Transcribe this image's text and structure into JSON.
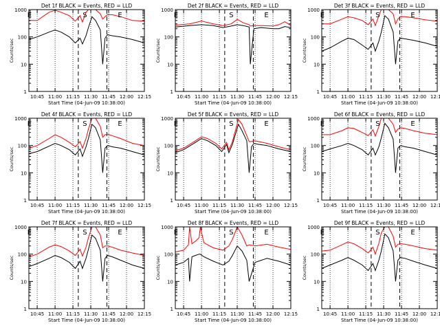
{
  "figure": {
    "xlabel": "Start Time (04-Jun-09 10:38:00)",
    "ylabel": "Counts/sec",
    "ytick_labels": [
      "1",
      "10",
      "100",
      "1000"
    ],
    "xtick_labels": [
      "10:45",
      "11:00",
      "11:15",
      "11:30",
      "11:45",
      "12:00",
      "12:15"
    ],
    "marker_labels": [
      "E",
      "S",
      "E"
    ],
    "colors": {
      "events": "#000000",
      "lld": "#ff0000",
      "frame": "#000000"
    }
  },
  "chart_data": [
    {
      "type": "line",
      "title": "Det 1f BLACK = Events, RED = LLD",
      "xlabel": "Start Time (04-Jun-09 10:38:00)",
      "ylabel": "Counts/sec",
      "xlim": [
        "10:38",
        "12:15"
      ],
      "ylim": [
        1,
        1000
      ],
      "yscale": "log",
      "x": [
        "10:38",
        "10:45",
        "10:55",
        "11:00",
        "11:05",
        "11:12",
        "11:17",
        "11:21",
        "11:23",
        "11:26",
        "11:28",
        "11:31",
        "11:34",
        "11:38",
        "11:40",
        "11:42",
        "11:44",
        "11:48",
        "11:55",
        "12:05",
        "12:15"
      ],
      "series": [
        {
          "name": "Events",
          "values": [
            80,
            100,
            150,
            180,
            150,
            100,
            60,
            90,
            55,
            110,
            220,
            550,
            400,
            180,
            10,
            90,
            120,
            110,
            100,
            80,
            60
          ]
        },
        {
          "name": "LLD",
          "values": [
            400,
            400,
            800,
            950,
            800,
            600,
            380,
            600,
            350,
            800,
            1000,
            1000,
            1000,
            700,
            450,
            550,
            650,
            650,
            550,
            400,
            380
          ]
        }
      ]
    },
    {
      "type": "line",
      "title": "Det 2f BLACK = Events, RED = LLD",
      "xlabel": "Start Time (04-Jun-09 10:38:00)",
      "ylabel": "Counts/sec",
      "xlim": [
        "10:38",
        "12:15"
      ],
      "ylim": [
        1,
        1000
      ],
      "yscale": "log",
      "x": [
        "10:38",
        "10:50",
        "11:00",
        "11:10",
        "11:18",
        "11:25",
        "11:30",
        "11:35",
        "11:40",
        "11:41",
        "11:44",
        "11:50",
        "12:00",
        "12:05",
        "12:10",
        "12:15"
      ],
      "series": [
        {
          "name": "Events",
          "values": [
            230,
            260,
            280,
            260,
            220,
            250,
            280,
            260,
            230,
            10,
            200,
            220,
            200,
            200,
            240,
            220
          ]
        },
        {
          "name": "LLD",
          "values": [
            270,
            300,
            380,
            300,
            260,
            300,
            440,
            330,
            280,
            250,
            260,
            260,
            250,
            280,
            360,
            260
          ]
        }
      ]
    },
    {
      "type": "line",
      "title": "Det 3f BLACK = Events, RED = LLD",
      "xlabel": "Start Time (04-Jun-09 10:38:00)",
      "ylabel": "Counts/sec",
      "xlim": [
        "10:38",
        "12:15"
      ],
      "ylim": [
        1,
        1000
      ],
      "yscale": "log",
      "x": [
        "10:38",
        "10:45",
        "10:55",
        "11:00",
        "11:05",
        "11:12",
        "11:17",
        "11:21",
        "11:23",
        "11:26",
        "11:28",
        "11:31",
        "11:34",
        "11:38",
        "11:40",
        "11:42",
        "11:44",
        "11:48",
        "11:55",
        "12:05",
        "12:15"
      ],
      "series": [
        {
          "name": "Events",
          "values": [
            30,
            40,
            70,
            90,
            80,
            50,
            35,
            60,
            30,
            70,
            150,
            600,
            450,
            150,
            10,
            70,
            90,
            85,
            75,
            60,
            45
          ]
        },
        {
          "name": "LLD",
          "values": [
            300,
            300,
            450,
            550,
            500,
            400,
            280,
            450,
            260,
            600,
            1000,
            1000,
            1000,
            700,
            300,
            450,
            550,
            550,
            500,
            420,
            380
          ]
        }
      ]
    },
    {
      "type": "line",
      "title": "Det 4f BLACK = Events, RED = LLD",
      "xlabel": "Start Time (04-Jun-09 10:38:00)",
      "ylabel": "Counts/sec",
      "xlim": [
        "10:38",
        "12:15"
      ],
      "ylim": [
        1,
        1000
      ],
      "yscale": "log",
      "x": [
        "10:38",
        "10:45",
        "10:55",
        "11:00",
        "11:05",
        "11:12",
        "11:17",
        "11:21",
        "11:23",
        "11:26",
        "11:28",
        "11:31",
        "11:34",
        "11:38",
        "11:40",
        "11:42",
        "11:44",
        "11:48",
        "11:55",
        "12:05",
        "12:15"
      ],
      "series": [
        {
          "name": "Events",
          "values": [
            50,
            60,
            95,
            120,
            100,
            70,
            45,
            75,
            40,
            90,
            180,
            600,
            450,
            160,
            10,
            80,
            100,
            90,
            80,
            60,
            45
          ]
        },
        {
          "name": "LLD",
          "values": [
            80,
            100,
            180,
            250,
            200,
            130,
            90,
            140,
            80,
            180,
            400,
            1000,
            1000,
            500,
            200,
            250,
            260,
            230,
            180,
            120,
            100
          ]
        }
      ]
    },
    {
      "type": "line",
      "title": "Det 5f BLACK = Events, RED = LLD",
      "xlabel": "Start Time (04-Jun-09 10:38:00)",
      "ylabel": "Counts/sec",
      "xlim": [
        "10:38",
        "12:15"
      ],
      "ylim": [
        1,
        1000
      ],
      "yscale": "log",
      "x": [
        "10:38",
        "10:45",
        "10:55",
        "11:00",
        "11:05",
        "11:12",
        "11:17",
        "11:21",
        "11:23",
        "11:26",
        "11:28",
        "11:31",
        "11:34",
        "11:38",
        "11:40",
        "11:42",
        "11:44",
        "11:48",
        "11:55",
        "12:05",
        "12:15"
      ],
      "series": [
        {
          "name": "Events",
          "values": [
            55,
            70,
            130,
            180,
            150,
            100,
            60,
            110,
            55,
            110,
            220,
            600,
            350,
            150,
            10,
            90,
            120,
            110,
            100,
            75,
            60
          ]
        },
        {
          "name": "LLD",
          "values": [
            65,
            80,
            150,
            210,
            180,
            120,
            75,
            130,
            70,
            140,
            300,
            900,
            600,
            230,
            140,
            140,
            150,
            140,
            120,
            90,
            70
          ]
        }
      ]
    },
    {
      "type": "line",
      "title": "Det 6f BLACK = Events, RED = LLD",
      "xlabel": "Start Time (04-Jun-09 10:38:00)",
      "ylabel": "Counts/sec",
      "xlim": [
        "10:38",
        "12:15"
      ],
      "ylim": [
        1,
        1000
      ],
      "yscale": "log",
      "x": [
        "10:38",
        "10:45",
        "10:55",
        "11:00",
        "11:05",
        "11:12",
        "11:17",
        "11:21",
        "11:23",
        "11:26",
        "11:28",
        "11:31",
        "11:34",
        "11:38",
        "11:40",
        "11:42",
        "11:44",
        "11:48",
        "11:55",
        "12:05",
        "12:15"
      ],
      "series": [
        {
          "name": "Events",
          "values": [
            60,
            75,
            100,
            120,
            100,
            70,
            45,
            80,
            45,
            90,
            190,
            650,
            450,
            170,
            10,
            80,
            100,
            90,
            80,
            60,
            45
          ]
        },
        {
          "name": "LLD",
          "values": [
            250,
            250,
            350,
            450,
            420,
            300,
            230,
            380,
            220,
            500,
            1000,
            1000,
            1000,
            600,
            300,
            400,
            450,
            420,
            350,
            280,
            250
          ]
        }
      ]
    },
    {
      "type": "line",
      "title": "Det 7f BLACK = Events, RED = LLD",
      "xlabel": "Start Time (04-Jun-09 10:38:00)",
      "ylabel": "Counts/sec",
      "xlim": [
        "10:38",
        "12:15"
      ],
      "ylim": [
        1,
        1000
      ],
      "yscale": "log",
      "x": [
        "10:38",
        "10:45",
        "10:55",
        "11:00",
        "11:05",
        "11:12",
        "11:17",
        "11:21",
        "11:23",
        "11:26",
        "11:28",
        "11:31",
        "11:34",
        "11:38",
        "11:40",
        "11:42",
        "11:44",
        "11:48",
        "11:55",
        "12:05",
        "12:15"
      ],
      "series": [
        {
          "name": "Events",
          "values": [
            35,
            45,
            70,
            90,
            75,
            50,
            30,
            55,
            30,
            70,
            150,
            500,
            380,
            140,
            10,
            70,
            90,
            80,
            60,
            40,
            30
          ]
        },
        {
          "name": "LLD",
          "values": [
            80,
            100,
            180,
            220,
            190,
            130,
            90,
            150,
            85,
            180,
            400,
            1000,
            1000,
            500,
            170,
            200,
            200,
            180,
            140,
            110,
            90
          ]
        }
      ]
    },
    {
      "type": "line",
      "title": "Det 8f BLACK = Events, RED = LLD",
      "xlabel": "Start Time (04-Jun-09 10:38:00)",
      "ylabel": "Counts/sec",
      "xlim": [
        "10:38",
        "12:15"
      ],
      "ylim": [
        1,
        1000
      ],
      "yscale": "log",
      "x": [
        "10:38",
        "10:45",
        "10:49",
        "10:50",
        "10:52",
        "10:55",
        "10:58",
        "10:59",
        "11:02",
        "11:10",
        "11:18",
        "11:23",
        "11:26",
        "11:30",
        "11:34",
        "11:38",
        "11:40",
        "11:45",
        "11:55",
        "12:05",
        "12:15"
      ],
      "series": [
        {
          "name": "Events",
          "values": [
            40,
            50,
            70,
            10,
            80,
            90,
            100,
            100,
            80,
            55,
            40,
            55,
            90,
            200,
            130,
            60,
            10,
            50,
            70,
            55,
            40
          ]
        },
        {
          "name": "LLD",
          "values": [
            120,
            140,
            220,
            1000,
            240,
            300,
            400,
            1000,
            260,
            170,
            140,
            200,
            350,
            1000,
            500,
            200,
            220,
            200,
            230,
            180,
            150
          ]
        }
      ]
    },
    {
      "type": "line",
      "title": "Det 9f BLACK = Events, RED = LLD",
      "xlabel": "Start Time (04-Jun-09 10:38:00)",
      "ylabel": "Counts/sec",
      "xlim": [
        "10:38",
        "12:15"
      ],
      "ylim": [
        1,
        1000
      ],
      "yscale": "log",
      "x": [
        "10:38",
        "10:45",
        "10:55",
        "11:00",
        "11:05",
        "11:12",
        "11:17",
        "11:21",
        "11:23",
        "11:26",
        "11:28",
        "11:31",
        "11:34",
        "11:38",
        "11:40",
        "11:42",
        "11:44",
        "11:48",
        "11:55",
        "12:05",
        "12:15"
      ],
      "series": [
        {
          "name": "Events",
          "values": [
            30,
            40,
            60,
            75,
            60,
            40,
            25,
            45,
            25,
            60,
            130,
            550,
            400,
            130,
            10,
            60,
            75,
            70,
            55,
            40,
            30
          ]
        },
        {
          "name": "LLD",
          "values": [
            130,
            140,
            220,
            280,
            240,
            160,
            110,
            180,
            100,
            250,
            600,
            1000,
            1000,
            450,
            180,
            230,
            240,
            230,
            200,
            160,
            140
          ]
        }
      ]
    }
  ]
}
